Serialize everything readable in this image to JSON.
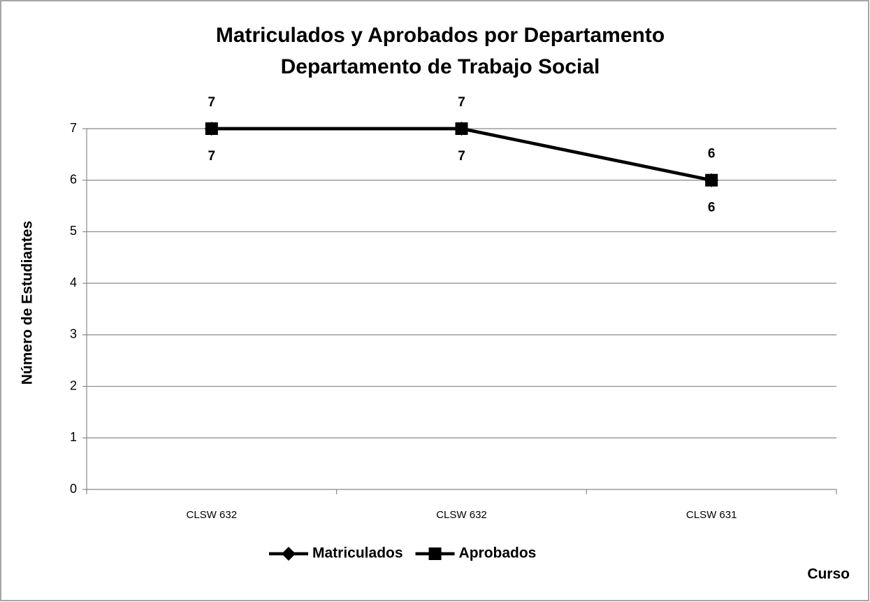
{
  "chart_data": {
    "type": "line",
    "title": "Matriculados y Aprobados por Departamento",
    "subtitle": "Departamento de Trabajo Social",
    "x_label": "Curso",
    "y_label": "Número de Estudiantes",
    "categories": [
      "CLSW 632",
      "CLSW 632",
      "CLSW 631"
    ],
    "series": [
      {
        "name": "Matriculados",
        "color": "#000000",
        "marker": "diamond",
        "values": [
          7,
          7,
          6
        ]
      },
      {
        "name": "Aprobados",
        "color": "#000000",
        "marker": "square",
        "values": [
          7,
          7,
          6
        ]
      }
    ],
    "ylim": [
      0,
      7
    ],
    "yticks": [
      0,
      1,
      2,
      3,
      4,
      5,
      6,
      7
    ],
    "grid": true,
    "legend": "bottom"
  }
}
